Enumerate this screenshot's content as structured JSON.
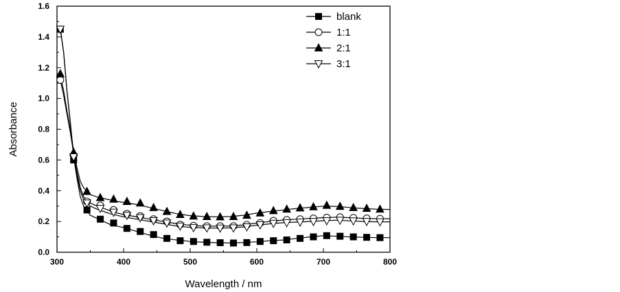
{
  "chart_data": {
    "type": "line",
    "xlabel": "Wavelength / nm",
    "ylabel": "Absorbance",
    "xlim": [
      300,
      800
    ],
    "ylim": [
      0.0,
      1.6
    ],
    "xticks": [
      "300",
      "400",
      "500",
      "600",
      "700",
      "800"
    ],
    "yticks": [
      "0.0",
      "0.2",
      "0.4",
      "0.6",
      "0.8",
      "1.0",
      "1.2",
      "1.4",
      "1.6"
    ],
    "legend_position": "top-right",
    "grid": false,
    "series": [
      {
        "name": "blank",
        "marker": "square-filled",
        "line_x": [
          300,
          305,
          310,
          315,
          320,
          325,
          330,
          335,
          340,
          345,
          350,
          360,
          370,
          380,
          390,
          400,
          420,
          440,
          460,
          480,
          500,
          520,
          540,
          560,
          580,
          600,
          620,
          640,
          660,
          680,
          700,
          720,
          740,
          760,
          780,
          800
        ],
        "line_y": [
          1.47,
          1.46,
          1.3,
          1.05,
          0.85,
          0.62,
          0.48,
          0.36,
          0.3,
          0.27,
          0.24,
          0.22,
          0.2,
          0.18,
          0.17,
          0.16,
          0.135,
          0.11,
          0.09,
          0.08,
          0.07,
          0.065,
          0.062,
          0.06,
          0.063,
          0.068,
          0.075,
          0.08,
          0.09,
          0.1,
          0.108,
          0.104,
          0.1,
          0.097,
          0.095,
          0.095
        ],
        "marker_x": [
          305,
          325,
          345,
          365,
          385,
          405,
          425,
          445,
          465,
          485,
          505,
          525,
          545,
          565,
          585,
          605,
          625,
          645,
          665,
          685,
          705,
          725,
          745,
          765,
          785
        ],
        "marker_y": [
          1.45,
          0.6,
          0.275,
          0.215,
          0.19,
          0.155,
          0.135,
          0.115,
          0.09,
          0.075,
          0.07,
          0.065,
          0.062,
          0.06,
          0.063,
          0.07,
          0.075,
          0.08,
          0.09,
          0.1,
          0.108,
          0.104,
          0.1,
          0.097,
          0.095
        ]
      },
      {
        "name": "1:1",
        "marker": "circle-open",
        "line_x": [
          300,
          305,
          310,
          315,
          320,
          325,
          330,
          335,
          340,
          345,
          350,
          360,
          370,
          380,
          390,
          400,
          420,
          440,
          460,
          480,
          500,
          520,
          540,
          560,
          580,
          600,
          620,
          640,
          660,
          680,
          700,
          720,
          740,
          760,
          780,
          800
        ],
        "line_y": [
          1.13,
          1.12,
          1.02,
          0.9,
          0.78,
          0.64,
          0.52,
          0.42,
          0.36,
          0.34,
          0.32,
          0.3,
          0.285,
          0.27,
          0.255,
          0.245,
          0.23,
          0.215,
          0.2,
          0.185,
          0.175,
          0.17,
          0.17,
          0.17,
          0.178,
          0.19,
          0.2,
          0.21,
          0.215,
          0.22,
          0.225,
          0.228,
          0.224,
          0.22,
          0.218,
          0.218
        ],
        "marker_x": [
          305,
          325,
          345,
          365,
          385,
          405,
          425,
          445,
          465,
          485,
          505,
          525,
          545,
          565,
          585,
          605,
          625,
          645,
          665,
          685,
          705,
          725,
          745,
          765,
          785
        ],
        "marker_y": [
          1.12,
          0.63,
          0.33,
          0.305,
          0.275,
          0.25,
          0.235,
          0.215,
          0.2,
          0.18,
          0.172,
          0.17,
          0.17,
          0.17,
          0.178,
          0.19,
          0.205,
          0.21,
          0.215,
          0.22,
          0.225,
          0.228,
          0.224,
          0.22,
          0.218
        ]
      },
      {
        "name": "2:1",
        "marker": "triangle-up-filled",
        "line_x": [
          300,
          305,
          310,
          315,
          320,
          325,
          330,
          335,
          340,
          345,
          350,
          360,
          370,
          380,
          390,
          400,
          420,
          440,
          460,
          480,
          500,
          520,
          540,
          560,
          580,
          600,
          620,
          640,
          660,
          680,
          700,
          720,
          740,
          760,
          780,
          800
        ],
        "line_y": [
          1.16,
          1.15,
          1.05,
          0.92,
          0.8,
          0.66,
          0.55,
          0.46,
          0.42,
          0.395,
          0.375,
          0.36,
          0.35,
          0.34,
          0.33,
          0.325,
          0.31,
          0.29,
          0.27,
          0.25,
          0.238,
          0.232,
          0.23,
          0.232,
          0.24,
          0.255,
          0.265,
          0.275,
          0.285,
          0.292,
          0.3,
          0.298,
          0.29,
          0.285,
          0.28,
          0.278
        ],
        "marker_x": [
          305,
          325,
          345,
          365,
          385,
          405,
          425,
          445,
          465,
          485,
          505,
          525,
          545,
          565,
          585,
          605,
          625,
          645,
          665,
          685,
          705,
          725,
          745,
          765,
          785
        ],
        "marker_y": [
          1.16,
          0.65,
          0.395,
          0.355,
          0.345,
          0.33,
          0.32,
          0.29,
          0.265,
          0.245,
          0.235,
          0.232,
          0.23,
          0.232,
          0.24,
          0.255,
          0.27,
          0.28,
          0.288,
          0.295,
          0.305,
          0.298,
          0.29,
          0.285,
          0.28
        ]
      },
      {
        "name": "3:1",
        "marker": "triangle-down-open",
        "line_x": [
          300,
          305,
          310,
          315,
          320,
          325,
          330,
          335,
          340,
          345,
          350,
          360,
          370,
          380,
          390,
          400,
          420,
          440,
          460,
          480,
          500,
          520,
          540,
          560,
          580,
          600,
          620,
          640,
          660,
          680,
          700,
          720,
          740,
          760,
          780,
          800
        ],
        "line_y": [
          1.46,
          1.45,
          1.3,
          1.05,
          0.84,
          0.63,
          0.5,
          0.4,
          0.34,
          0.32,
          0.3,
          0.28,
          0.265,
          0.25,
          0.24,
          0.23,
          0.215,
          0.2,
          0.185,
          0.17,
          0.162,
          0.158,
          0.157,
          0.158,
          0.165,
          0.175,
          0.185,
          0.192,
          0.196,
          0.2,
          0.205,
          0.208,
          0.204,
          0.2,
          0.198,
          0.198
        ],
        "marker_x": [
          305,
          325,
          345,
          365,
          385,
          405,
          425,
          445,
          465,
          485,
          505,
          525,
          545,
          565,
          585,
          605,
          625,
          645,
          665,
          685,
          705,
          725,
          745,
          765,
          785
        ],
        "marker_y": [
          1.45,
          0.62,
          0.32,
          0.285,
          0.26,
          0.24,
          0.225,
          0.205,
          0.19,
          0.17,
          0.16,
          0.158,
          0.157,
          0.158,
          0.165,
          0.178,
          0.188,
          0.192,
          0.196,
          0.2,
          0.205,
          0.208,
          0.204,
          0.2,
          0.198
        ]
      }
    ]
  }
}
